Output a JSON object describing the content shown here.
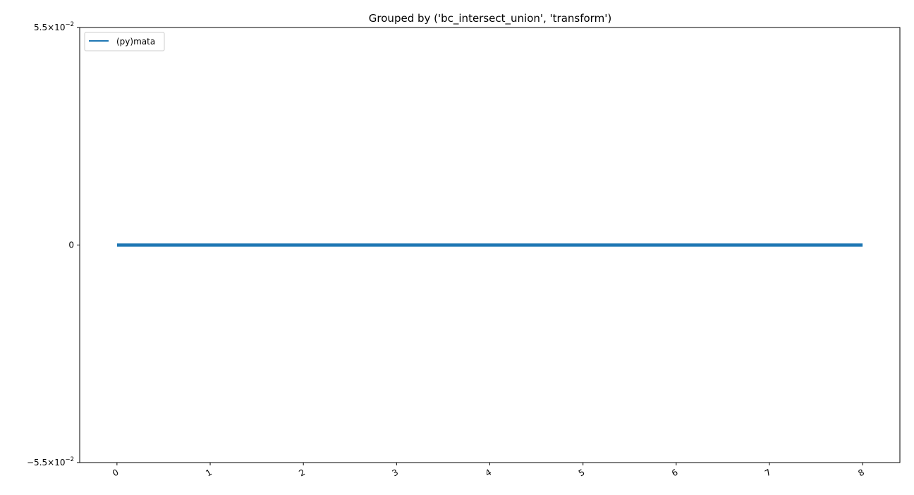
{
  "chart_data": {
    "type": "line",
    "title": "Grouped by ('bc_intersect_union', 'transform')",
    "xlabel": "",
    "ylabel": "",
    "x": [
      0,
      1,
      2,
      3,
      4,
      5,
      6,
      7,
      8
    ],
    "xlim": [
      -0.4,
      8.4
    ],
    "ylim": [
      -0.055,
      0.055
    ],
    "x_ticks": [
      "0",
      "1",
      "2",
      "3",
      "4",
      "5",
      "6",
      "7",
      "8"
    ],
    "y_ticks": [
      {
        "value": 0.055,
        "mantissa": "5.5",
        "exponent": "−2"
      },
      {
        "value": 0,
        "label": "0"
      },
      {
        "value": -0.055,
        "mantissa": "−5.5",
        "exponent": "−2"
      }
    ],
    "y_scale": "symlog",
    "grid": false,
    "legend_position": "upper left",
    "series": [
      {
        "name": "(py)mata",
        "color": "#1f77b4",
        "values": [
          0,
          0,
          0,
          0,
          0,
          0,
          0,
          0,
          0
        ]
      }
    ]
  }
}
